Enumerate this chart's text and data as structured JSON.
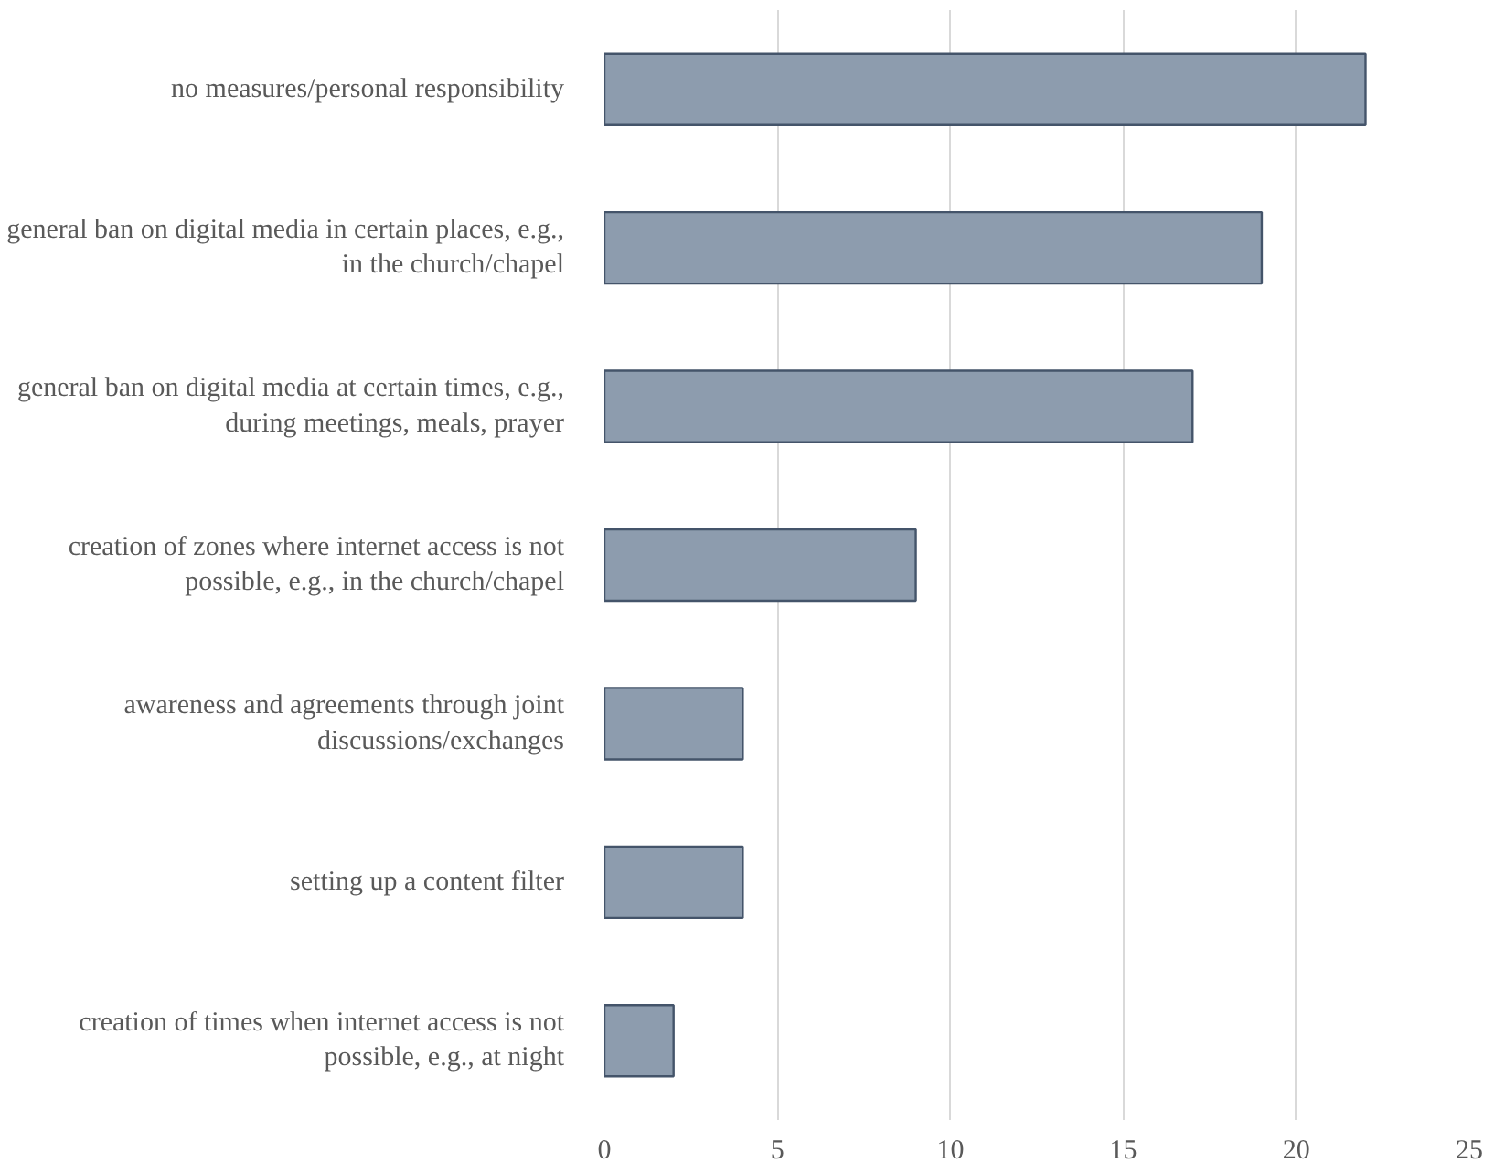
{
  "chart_data": {
    "type": "bar",
    "orientation": "horizontal",
    "categories": [
      "no measures/personal responsibility",
      "general ban on digital media in certain places, e.g., in the church/chapel",
      "general ban on digital media at certain times, e.g., during meetings, meals, prayer",
      "creation of zones where internet access is not possible, e.g., in the church/chapel",
      "awareness and agreements through joint discussions/exchanges",
      "setting up a content filter",
      "creation of times when internet access is not possible, e.g., at night"
    ],
    "values": [
      22,
      19,
      17,
      9,
      4,
      4,
      2
    ],
    "color": "#8d9cae",
    "xlim": [
      0,
      25
    ],
    "xticks": [
      0,
      5,
      10,
      15,
      20,
      25
    ],
    "grid": "x"
  }
}
